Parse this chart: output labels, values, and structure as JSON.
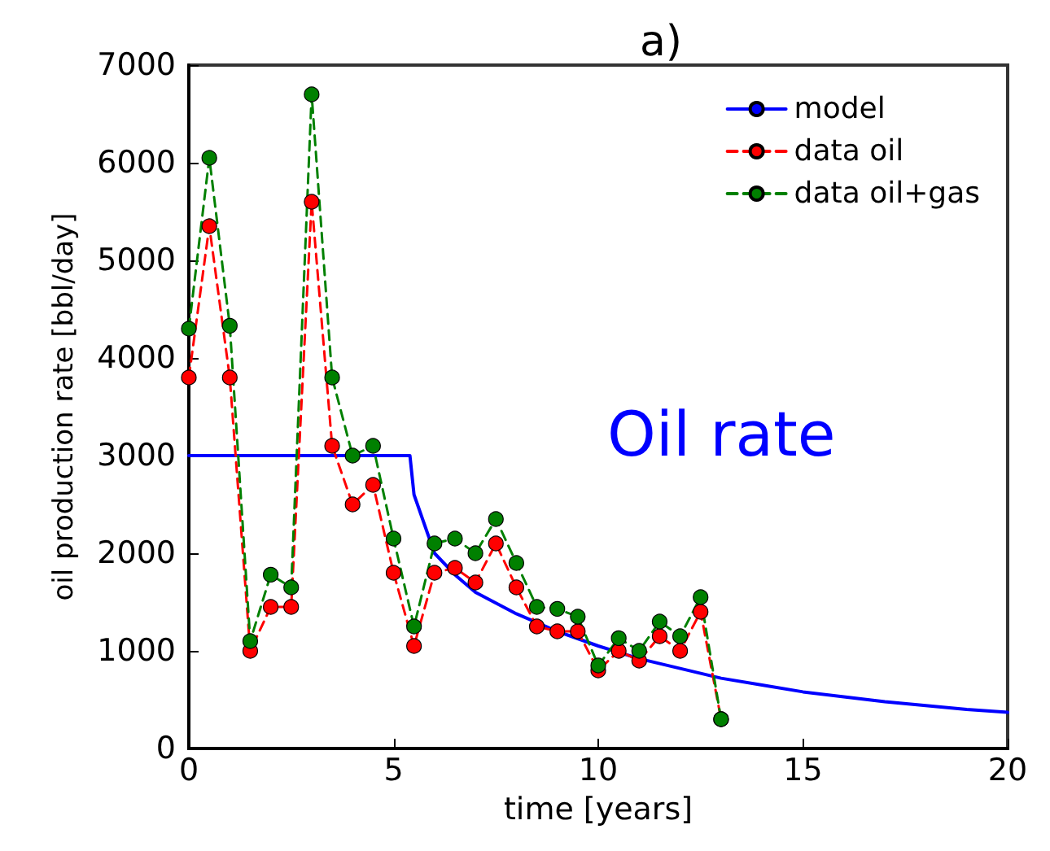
{
  "chart_data": {
    "type": "line",
    "title": "a)",
    "xlabel": "time [years]",
    "ylabel": "oil production rate [bbl/day]",
    "annotations": [
      "Oil rate"
    ],
    "xlim": [
      0,
      20
    ],
    "xticks": [
      0,
      5,
      10,
      15,
      20
    ],
    "ylim": [
      0,
      7000
    ],
    "yticks": [
      0,
      1000,
      2000,
      3000,
      4000,
      5000,
      6000,
      7000
    ],
    "grid": false,
    "legend": "top right",
    "series": [
      {
        "name": "model",
        "color": "#0000ff",
        "marker": "none",
        "line_style": "solid",
        "x": [
          0,
          5.4,
          5.5,
          6,
          6.5,
          7,
          8,
          9,
          10,
          11,
          12,
          13,
          14,
          15,
          16,
          17,
          18,
          19,
          20
        ],
        "values": [
          3000,
          3000,
          2600,
          2000,
          1780,
          1600,
          1380,
          1200,
          1050,
          920,
          820,
          720,
          650,
          580,
          530,
          480,
          440,
          400,
          370
        ]
      },
      {
        "name": "data oil",
        "color": "#ff0000",
        "marker": "circle",
        "line_style": "dashed",
        "x": [
          0,
          0.5,
          1,
          1.5,
          2,
          2.5,
          3,
          3.5,
          4,
          4.5,
          5,
          5.5,
          6,
          6.5,
          7,
          7.5,
          8,
          8.5,
          9,
          9.5,
          10,
          10.5,
          11,
          11.5,
          12,
          12.5,
          13
        ],
        "values": [
          3800,
          5350,
          3800,
          1000,
          1450,
          1450,
          5600,
          3100,
          2500,
          2700,
          1800,
          1050,
          1800,
          1850,
          1700,
          2100,
          1650,
          1250,
          1200,
          1200,
          800,
          1000,
          900,
          1150,
          1000,
          1400,
          300
        ]
      },
      {
        "name": "data oil+gas",
        "color": "#008000",
        "marker": "circle",
        "line_style": "dashed",
        "x": [
          0,
          0.5,
          1,
          1.5,
          2,
          2.5,
          3,
          3.5,
          4,
          4.5,
          5,
          5.5,
          6,
          6.5,
          7,
          7.5,
          8,
          8.5,
          9,
          9.5,
          10,
          10.5,
          11,
          11.5,
          12,
          12.5,
          13
        ],
        "values": [
          4300,
          6050,
          4330,
          1100,
          1780,
          1650,
          6700,
          3800,
          3000,
          3100,
          2150,
          1250,
          2100,
          2150,
          2000,
          2350,
          1900,
          1450,
          1430,
          1350,
          850,
          1130,
          1000,
          1300,
          1150,
          1550,
          300
        ]
      }
    ]
  }
}
